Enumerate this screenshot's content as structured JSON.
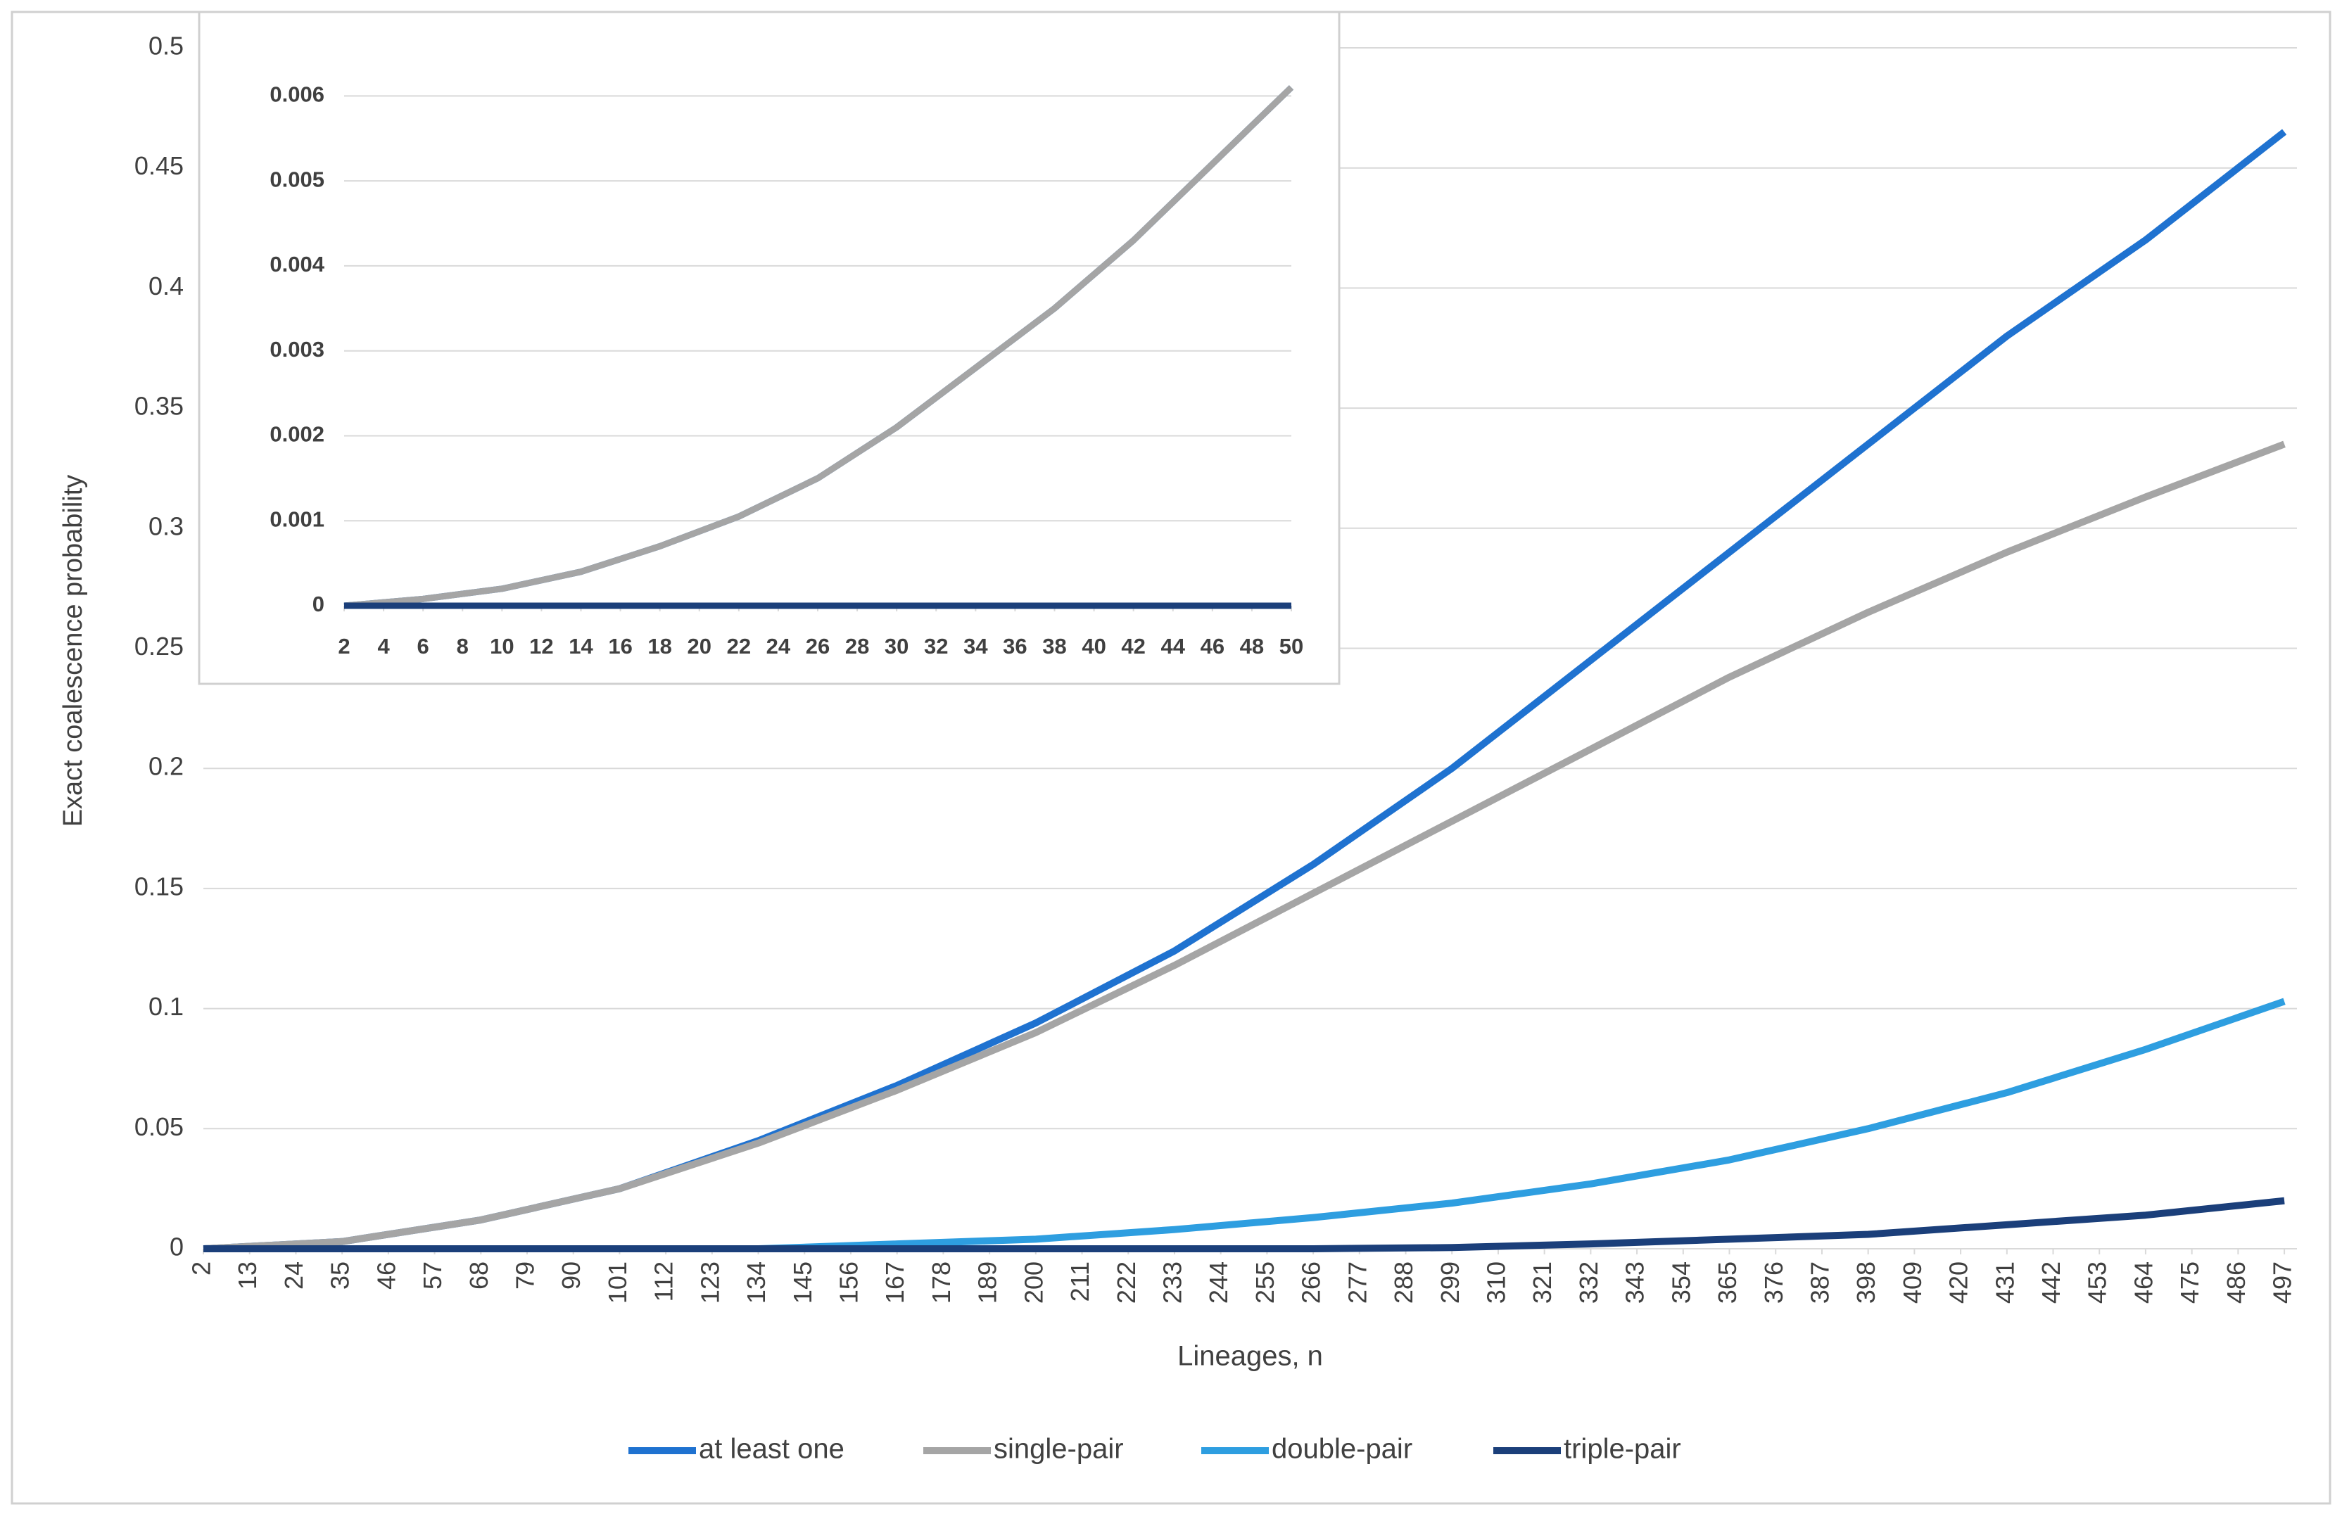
{
  "chart_data": [
    {
      "type": "line",
      "x_label": "Lineages, n",
      "y_label": "Exact coalescence probability",
      "x": [
        2,
        35,
        68,
        101,
        134,
        167,
        200,
        233,
        266,
        299,
        332,
        365,
        398,
        431,
        464,
        497
      ],
      "xlim": [
        2,
        500
      ],
      "xticks": [
        2,
        13,
        24,
        35,
        46,
        57,
        68,
        79,
        90,
        101,
        112,
        123,
        134,
        145,
        156,
        167,
        178,
        189,
        200,
        211,
        222,
        233,
        244,
        255,
        266,
        277,
        288,
        299,
        310,
        321,
        332,
        343,
        354,
        365,
        376,
        387,
        398,
        409,
        420,
        431,
        442,
        453,
        464,
        475,
        486,
        497
      ],
      "ylim": [
        0,
        0.5
      ],
      "yticks": [
        0,
        0.05,
        0.1,
        0.15,
        0.2,
        0.25,
        0.3,
        0.35,
        0.4,
        0.45,
        0.5
      ],
      "grid": true,
      "legend": "bottom",
      "series": [
        {
          "name": "at least one",
          "color": "#1f72d0",
          "values": [
            0,
            0.003,
            0.012,
            0.025,
            0.045,
            0.068,
            0.094,
            0.124,
            0.16,
            0.2,
            0.245,
            0.29,
            0.335,
            0.38,
            0.42,
            0.465
          ]
        },
        {
          "name": "single-pair",
          "color": "#a5a5a5",
          "values": [
            0,
            0.003,
            0.012,
            0.025,
            0.044,
            0.066,
            0.09,
            0.118,
            0.148,
            0.178,
            0.208,
            0.238,
            0.265,
            0.29,
            0.313,
            0.335
          ]
        },
        {
          "name": "double-pair",
          "color": "#2e9ee0",
          "values": [
            0,
            0,
            0,
            0,
            0,
            0.002,
            0.004,
            0.008,
            0.013,
            0.019,
            0.027,
            0.037,
            0.05,
            0.065,
            0.083,
            0.103
          ]
        },
        {
          "name": "triple-pair",
          "color": "#1b3f7a",
          "values": [
            0,
            0,
            0,
            0,
            0,
            0,
            0,
            0,
            0,
            0.0005,
            0.002,
            0.004,
            0.006,
            0.01,
            0.014,
            0.02
          ]
        }
      ]
    },
    {
      "type": "line",
      "x": [
        2,
        6,
        10,
        14,
        18,
        22,
        26,
        30,
        34,
        38,
        42,
        46,
        50
      ],
      "xlim": [
        2,
        50
      ],
      "xticks": [
        2,
        4,
        6,
        8,
        10,
        12,
        14,
        16,
        18,
        20,
        22,
        24,
        26,
        28,
        30,
        32,
        34,
        36,
        38,
        40,
        42,
        44,
        46,
        48,
        50
      ],
      "ylim": [
        0,
        0.0065
      ],
      "yticks": [
        0,
        0.001,
        0.002,
        0.003,
        0.004,
        0.005,
        0.006
      ],
      "grid": true,
      "series": [
        {
          "color": "#1f72d0",
          "values": [
            0,
            8e-05,
            0.0002,
            0.0004,
            0.0007,
            0.00105,
            0.0015,
            0.0021,
            0.0028,
            0.0035,
            0.0043,
            0.0052,
            0.0061
          ]
        },
        {
          "color": "#a5a5a5",
          "values": [
            0,
            8e-05,
            0.0002,
            0.0004,
            0.0007,
            0.00105,
            0.0015,
            0.0021,
            0.0028,
            0.0035,
            0.0043,
            0.0052,
            0.0061
          ]
        },
        {
          "color": "#1b3f7a",
          "values": [
            0,
            0,
            0,
            0,
            0,
            0,
            0,
            0,
            0,
            0,
            0,
            0,
            0
          ]
        }
      ]
    }
  ]
}
